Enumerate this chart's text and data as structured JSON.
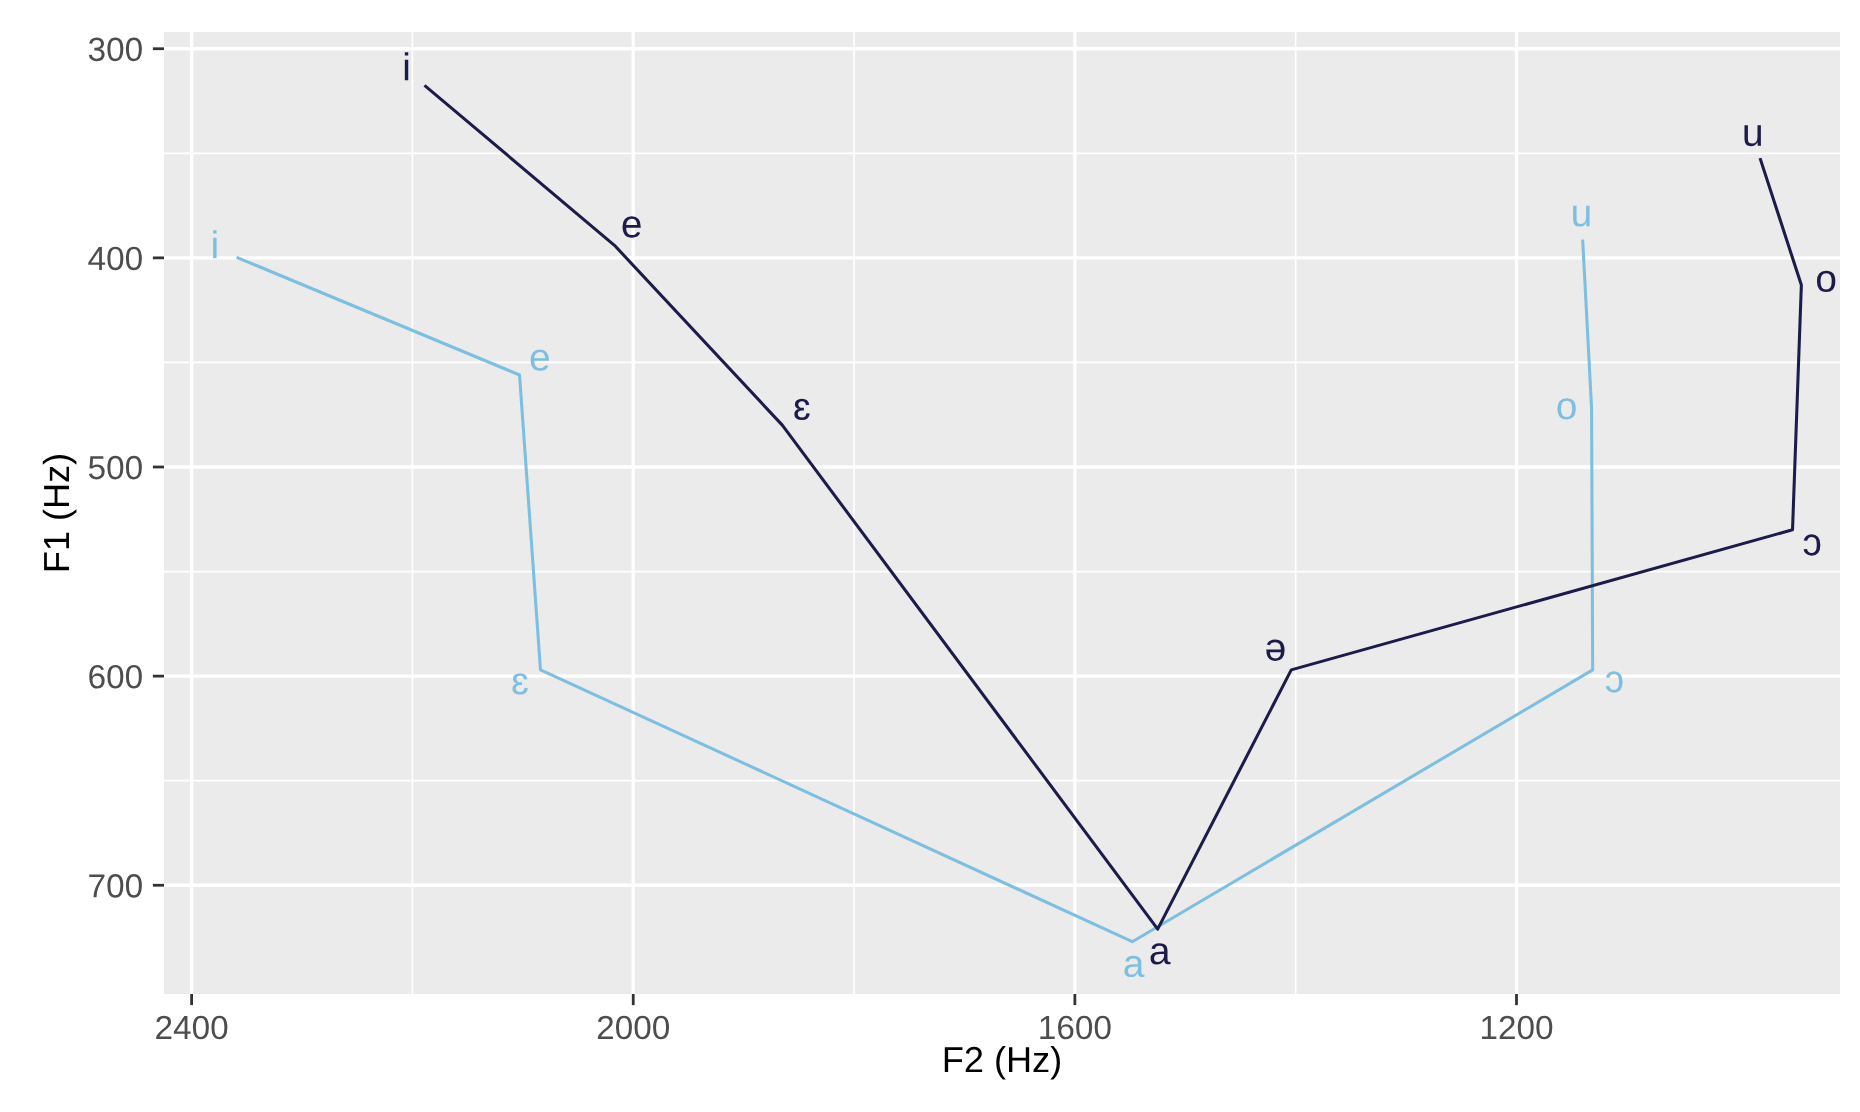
{
  "chart_data": {
    "type": "line",
    "xlabel": "F2 (Hz)",
    "ylabel": "F1 (Hz)",
    "xlim": [
      2425,
      907
    ],
    "ylim": [
      752,
      292
    ],
    "xticks": [
      2400,
      2000,
      1600,
      1200
    ],
    "yticks": [
      300,
      400,
      500,
      600,
      700
    ],
    "grid": true,
    "marker": "none",
    "line_style": "solid",
    "series": [
      {
        "color": "#7dbfe0",
        "x": [
          2358,
          2103,
          2084,
          1548,
          1131,
          1132,
          1140
        ],
        "values": [
          400,
          456,
          597,
          727,
          597,
          472,
          392
        ],
        "value_labels": [
          "i",
          "e",
          "ɛ",
          "a",
          "ɔ",
          "o",
          "u"
        ]
      },
      {
        "color": "#1c1c4a",
        "x": [
          2188,
          2017,
          1865,
          1525,
          1404,
          950,
          942,
          979
        ],
        "values": [
          318,
          394,
          480,
          721,
          597,
          530,
          413,
          353
        ],
        "value_labels": [
          "i",
          "e",
          "ɛ",
          "a",
          "ə",
          "ɔ",
          "o",
          "u"
        ]
      }
    ]
  }
}
